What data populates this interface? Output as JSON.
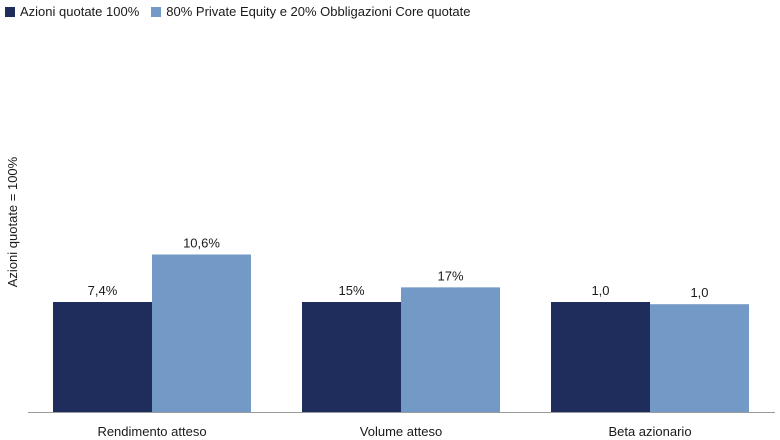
{
  "chart_data": {
    "type": "bar",
    "title": "",
    "xlabel": "",
    "ylabel": "Azioni quotate = 100%",
    "categories": [
      "Rendimento atteso",
      "Volume atteso",
      "Beta azionario"
    ],
    "series": [
      {
        "name": "Azioni quotate 100%",
        "color": "#1f2d5c",
        "values": [
          100,
          100,
          100
        ],
        "labels": [
          "7,4%",
          "15%",
          "1,0"
        ]
      },
      {
        "name": "80% Private Equity e 20% Obbligazioni Core quotate",
        "color": "#7399c6",
        "values": [
          143.2,
          113.3,
          98
        ],
        "labels": [
          "10,6%",
          "17%",
          "1,0"
        ]
      }
    ],
    "ylim": [
      0,
      160
    ],
    "grid": false,
    "legend_position": "top-left"
  }
}
